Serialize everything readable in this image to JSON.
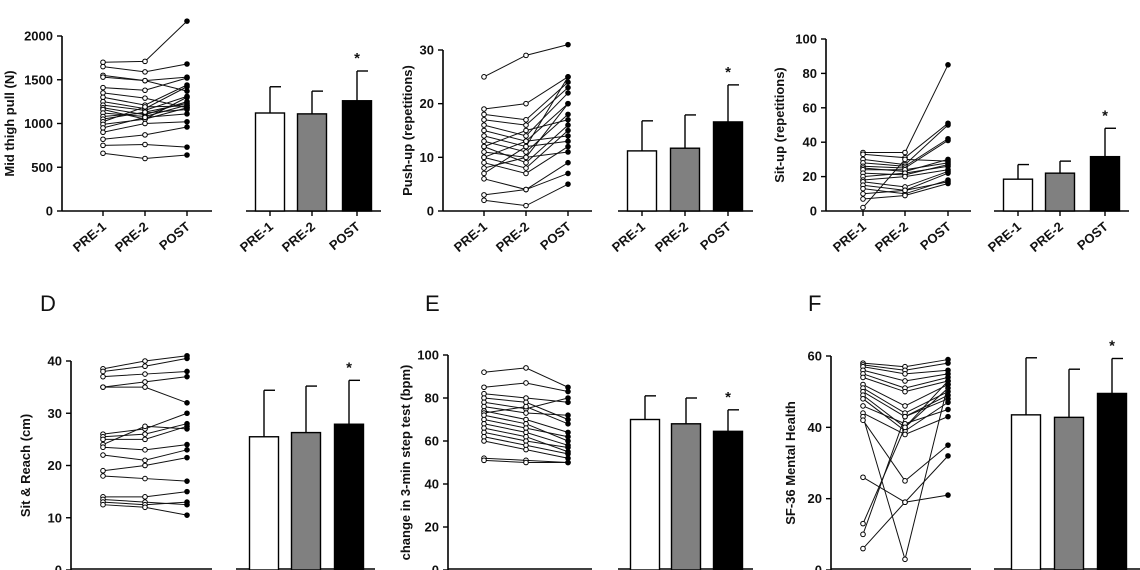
{
  "colors": {
    "pre1": "#ffffff",
    "pre2": "#808080",
    "post": "#000000",
    "ink": "#111111"
  },
  "chart_data": [
    {
      "panel": "A",
      "panel_label": "",
      "type": "line+bar",
      "ylabel": "Mid thigh pull (N)",
      "ylim": [
        0,
        2000
      ],
      "yticks": [
        0,
        500,
        1000,
        1500,
        2000
      ],
      "categories": [
        "PRE-1",
        "PRE-2",
        "POST"
      ],
      "subjects": [
        [
          1700,
          1710,
          2170
        ],
        [
          1650,
          1590,
          1680
        ],
        [
          1550,
          1490,
          1370
        ],
        [
          1530,
          1490,
          1530
        ],
        [
          1410,
          1380,
          1520
        ],
        [
          1350,
          1290,
          1180
        ],
        [
          1300,
          1210,
          1440
        ],
        [
          1250,
          1170,
          1420
        ],
        [
          1210,
          1150,
          1310
        ],
        [
          1180,
          1100,
          1250
        ],
        [
          1160,
          1050,
          1300
        ],
        [
          1120,
          1080,
          1210
        ],
        [
          1080,
          1120,
          1160
        ],
        [
          1050,
          1130,
          1230
        ],
        [
          1020,
          1190,
          1200
        ],
        [
          990,
          1050,
          1180
        ],
        [
          950,
          1070,
          1110
        ],
        [
          900,
          1000,
          1020
        ],
        [
          820,
          870,
          960
        ],
        [
          750,
          760,
          730
        ],
        [
          660,
          600,
          640
        ]
      ],
      "means": [
        1120,
        1110,
        1260
      ],
      "sd": [
        300,
        260,
        340
      ],
      "significance": [
        null,
        null,
        "*"
      ]
    },
    {
      "panel": "B",
      "panel_label": "",
      "type": "line+bar",
      "ylabel": "Push-up (repetitions)",
      "ylim": [
        0,
        30
      ],
      "yticks": [
        0,
        10,
        20,
        30
      ],
      "categories": [
        "PRE-1",
        "PRE-2",
        "POST"
      ],
      "subjects": [
        [
          25,
          29,
          31
        ],
        [
          19,
          20,
          25
        ],
        [
          18,
          17,
          24
        ],
        [
          17,
          16,
          23
        ],
        [
          16,
          14,
          22
        ],
        [
          15,
          13,
          20
        ],
        [
          14,
          12,
          25
        ],
        [
          13,
          11,
          18
        ],
        [
          12,
          15,
          17
        ],
        [
          12,
          9,
          16
        ],
        [
          11,
          10,
          20
        ],
        [
          10,
          8,
          15
        ],
        [
          10,
          13,
          14
        ],
        [
          9,
          7,
          12
        ],
        [
          8,
          10,
          11
        ],
        [
          7,
          12,
          13
        ],
        [
          6,
          4,
          9
        ],
        [
          3,
          4,
          7
        ],
        [
          2,
          1,
          5
        ]
      ],
      "means": [
        11.2,
        11.7,
        16.6
      ],
      "sd": [
        5.6,
        6.2,
        6.9
      ],
      "significance": [
        null,
        null,
        "*"
      ]
    },
    {
      "panel": "C",
      "panel_label": "",
      "type": "line+bar",
      "ylabel": "Sit-up (repetitions)",
      "ylim": [
        0,
        100
      ],
      "yticks": [
        0,
        20,
        40,
        60,
        80,
        100
      ],
      "categories": [
        "PRE-1",
        "PRE-2",
        "POST"
      ],
      "subjects": [
        [
          34,
          34,
          85
        ],
        [
          33,
          31,
          51
        ],
        [
          30,
          27,
          50
        ],
        [
          28,
          26,
          42
        ],
        [
          26,
          25,
          41
        ],
        [
          25,
          23,
          30
        ],
        [
          24,
          24,
          28
        ],
        [
          22,
          21,
          27
        ],
        [
          20,
          22,
          26
        ],
        [
          18,
          20,
          24
        ],
        [
          17,
          14,
          23
        ],
        [
          15,
          12,
          22
        ],
        [
          13,
          10,
          18
        ],
        [
          10,
          12,
          17
        ],
        [
          7,
          9,
          16
        ],
        [
          2,
          30,
          29
        ]
      ],
      "means": [
        18.5,
        22,
        31.6
      ],
      "sd": [
        8.5,
        7,
        16.5
      ],
      "significance": [
        null,
        null,
        "*"
      ]
    },
    {
      "panel": "D",
      "panel_label": "D",
      "type": "line+bar",
      "ylabel": "Sit & Reach (cm)",
      "ylim": [
        0,
        40
      ],
      "yticks": [
        0,
        10,
        20,
        30,
        40
      ],
      "categories": [
        "PRE-1",
        "PRE-2",
        "POST"
      ],
      "subjects": [
        [
          38.5,
          40,
          41
        ],
        [
          38,
          39,
          40.5
        ],
        [
          37,
          37.5,
          38
        ],
        [
          35,
          36,
          37
        ],
        [
          35,
          35,
          32
        ],
        [
          26,
          27,
          30
        ],
        [
          25.5,
          26,
          28
        ],
        [
          25,
          25,
          27.5
        ],
        [
          24,
          27.5,
          27
        ],
        [
          23.5,
          23,
          24
        ],
        [
          22,
          21,
          23
        ],
        [
          19,
          20,
          21.5
        ],
        [
          18,
          17.5,
          17
        ],
        [
          14,
          14,
          15
        ],
        [
          13.5,
          13,
          12.5
        ],
        [
          13,
          12.5,
          13
        ],
        [
          12.5,
          12,
          10.5
        ]
      ],
      "means": [
        25.5,
        26.3,
        27.9
      ],
      "sd": [
        8.9,
        8.9,
        8.4
      ],
      "significance": [
        null,
        null,
        "*"
      ]
    },
    {
      "panel": "E",
      "panel_label": "E",
      "type": "line+bar",
      "ylabel": "change in 3-min step test (bpm)",
      "ylim": [
        0,
        100
      ],
      "yticks": [
        0,
        20,
        40,
        60,
        80,
        100
      ],
      "categories": [
        "PRE-1",
        "PRE-2",
        "POST"
      ],
      "subjects": [
        [
          92,
          94,
          85
        ],
        [
          85,
          87,
          83
        ],
        [
          82,
          80,
          78
        ],
        [
          80,
          78,
          70
        ],
        [
          78,
          75,
          80
        ],
        [
          76,
          73,
          72
        ],
        [
          74,
          70,
          64
        ],
        [
          73,
          76,
          68
        ],
        [
          72,
          68,
          60
        ],
        [
          70,
          66,
          62
        ],
        [
          68,
          64,
          58
        ],
        [
          66,
          62,
          55
        ],
        [
          64,
          60,
          57
        ],
        [
          62,
          58,
          54
        ],
        [
          60,
          56,
          52
        ],
        [
          52,
          51,
          50
        ],
        [
          51,
          50,
          50
        ]
      ],
      "means": [
        70,
        68,
        64.5
      ],
      "sd": [
        11,
        12,
        10
      ],
      "significance": [
        null,
        null,
        "*"
      ]
    },
    {
      "panel": "F",
      "panel_label": "F",
      "type": "line+bar",
      "ylabel": "SF-36 Mental Health",
      "ylim": [
        0,
        60
      ],
      "yticks": [
        0,
        20,
        40,
        60
      ],
      "categories": [
        "PRE-1",
        "PRE-2",
        "POST"
      ],
      "subjects": [
        [
          58,
          57,
          59
        ],
        [
          57.5,
          56,
          58
        ],
        [
          57,
          55,
          56
        ],
        [
          56,
          53,
          55
        ],
        [
          55,
          51,
          54
        ],
        [
          54,
          50,
          53
        ],
        [
          52,
          46,
          52
        ],
        [
          51,
          44,
          50
        ],
        [
          50,
          43,
          49
        ],
        [
          49,
          40,
          51
        ],
        [
          48,
          39,
          47
        ],
        [
          46,
          41,
          45
        ],
        [
          44,
          38,
          43
        ],
        [
          43,
          3,
          52
        ],
        [
          42,
          25,
          35
        ],
        [
          26,
          19,
          32
        ],
        [
          13,
          40,
          53
        ],
        [
          10,
          43,
          48
        ],
        [
          6,
          19,
          21
        ]
      ],
      "means": [
        43.5,
        42.8,
        49.5
      ],
      "sd": [
        16,
        13.5,
        9.8
      ],
      "significance": [
        null,
        null,
        "*"
      ]
    }
  ]
}
